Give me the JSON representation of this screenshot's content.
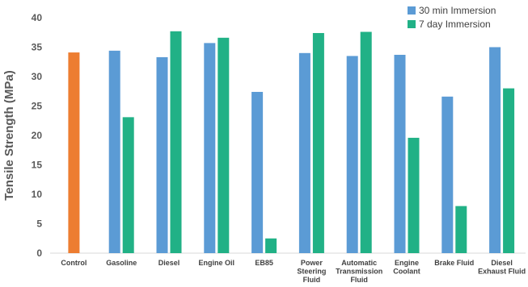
{
  "chart_data": {
    "type": "bar",
    "ylabel": "Tensile Strength (MPa)",
    "xlabel": "",
    "ylim": [
      0,
      40
    ],
    "yticks": [
      0,
      5,
      10,
      15,
      20,
      25,
      30,
      35,
      40
    ],
    "grid": false,
    "legend_position": "top-right",
    "categories": [
      [
        "Control"
      ],
      [
        "Gasoline"
      ],
      [
        "Diesel"
      ],
      [
        "Engine Oil"
      ],
      [
        "EB85"
      ],
      [
        "Power",
        "Steering",
        "Fluid"
      ],
      [
        "Automatic",
        "Transmission",
        "Fluid"
      ],
      [
        "Engine",
        "Coolant"
      ],
      [
        "Brake Fluid"
      ],
      [
        "Diesel",
        "Exhaust Fluid"
      ]
    ],
    "control": {
      "value": 34.1,
      "color": "#ED7D31"
    },
    "series": [
      {
        "name": "30 min Immersion",
        "color": "#5B9BD5",
        "values": [
          null,
          34.4,
          33.3,
          35.7,
          27.4,
          34.0,
          33.5,
          33.7,
          26.6,
          35.0
        ]
      },
      {
        "name": "7 day Immersion",
        "color": "#21B186",
        "values": [
          null,
          23.1,
          37.7,
          36.6,
          2.5,
          37.4,
          37.6,
          19.6,
          8.0,
          28.0
        ]
      }
    ]
  }
}
